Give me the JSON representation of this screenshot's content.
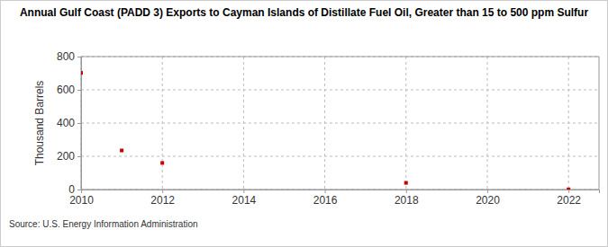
{
  "chart_data": {
    "type": "scatter",
    "title": "Annual Gulf Coast (PADD 3) Exports to Cayman Islands of Distillate Fuel Oil, Greater than 15 to 500 ppm Sulfur",
    "y_label": "Thousand Barrels",
    "source": "Source: U.S. Energy Information Administration",
    "x": [
      2010,
      2011,
      2012,
      2018,
      2022
    ],
    "values": [
      702,
      235,
      160,
      40,
      1
    ],
    "color": "#cc0000",
    "marker": "square",
    "xlim": [
      2010,
      2022.75
    ],
    "xticks": [
      2010,
      2012,
      2014,
      2016,
      2018,
      2020,
      2022
    ],
    "ylim": [
      0,
      800
    ],
    "yticks": [
      0,
      200,
      400,
      600,
      800
    ],
    "grid": true
  }
}
